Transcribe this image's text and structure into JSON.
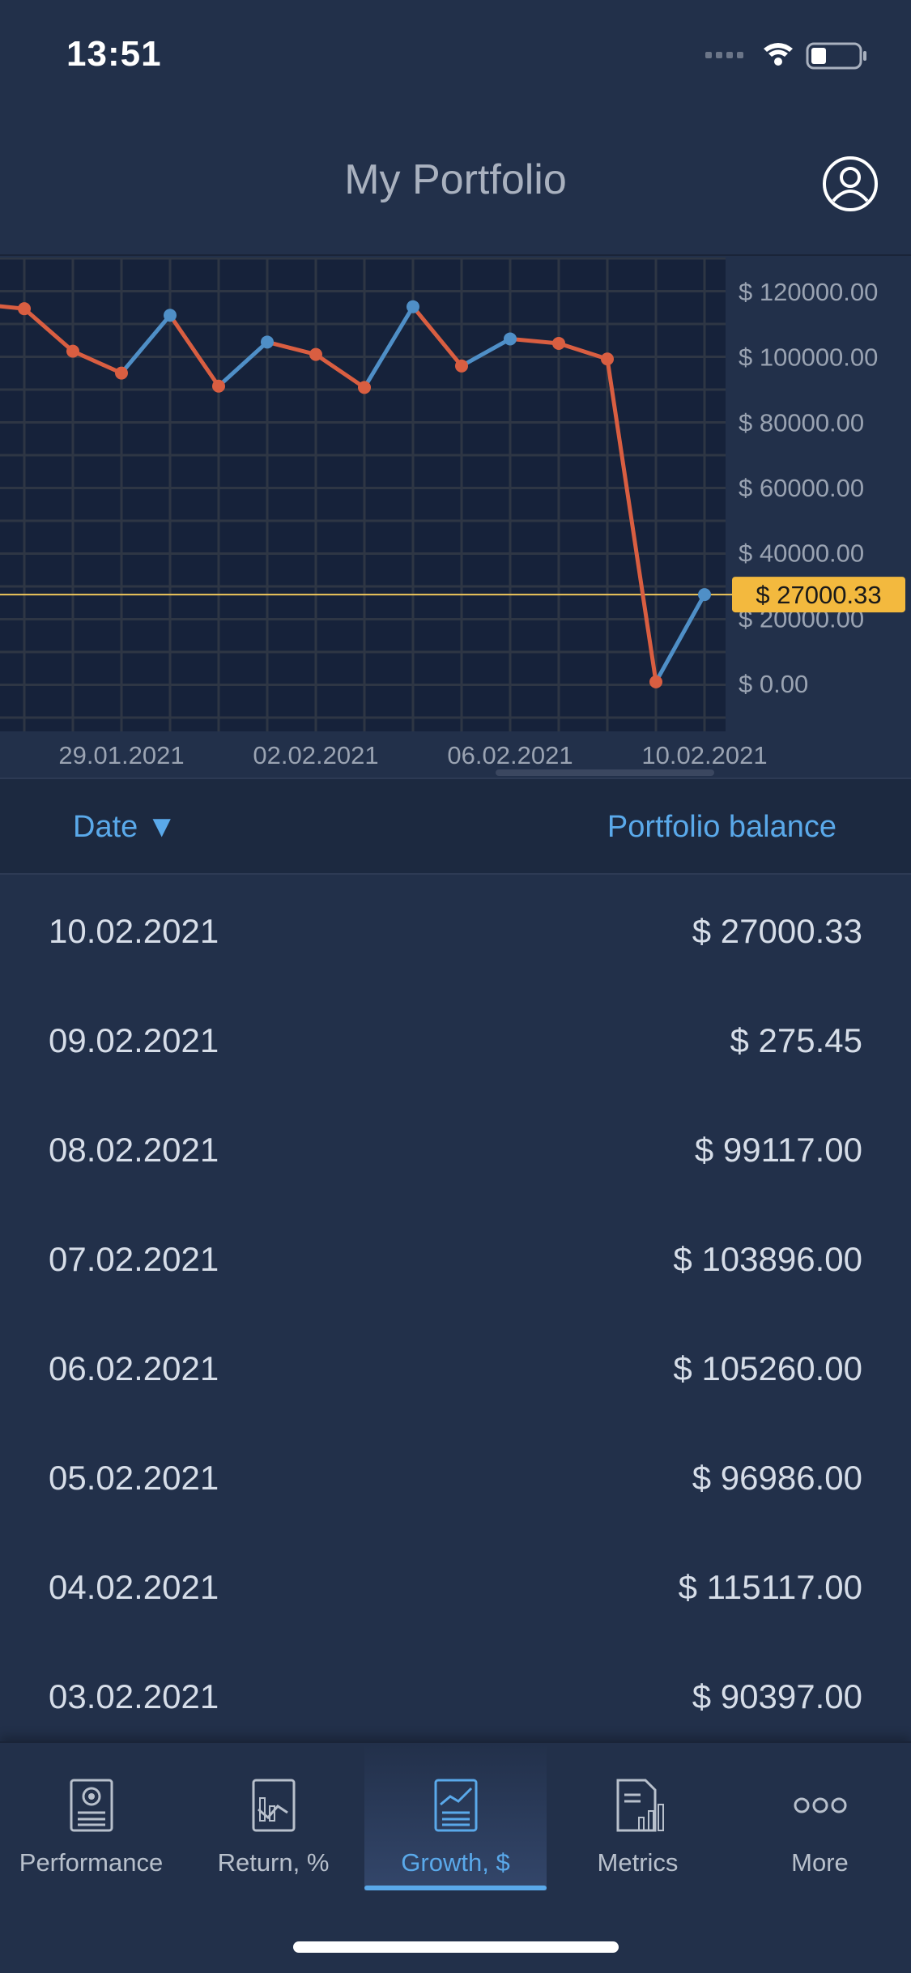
{
  "status": {
    "time": "13:51"
  },
  "header": {
    "title": "My Portfolio",
    "profile_icon": "user-circle-icon"
  },
  "chart_data": {
    "type": "line",
    "x": [
      "26.01.2021",
      "27.01.2021",
      "28.01.2021",
      "29.01.2021",
      "30.01.2021",
      "31.01.2021",
      "01.02.2021",
      "02.02.2021",
      "03.02.2021",
      "04.02.2021",
      "05.02.2021",
      "06.02.2021",
      "07.02.2021",
      "08.02.2021",
      "09.02.2021",
      "10.02.2021"
    ],
    "values": [
      116000,
      114500,
      101500,
      94800,
      112500,
      90800,
      104300,
      100500,
      90397,
      115117,
      96986,
      105260,
      103896,
      99117,
      275.45,
      27000.33
    ],
    "ylim": [
      0,
      120000
    ],
    "y_ticks": [
      "$ 0.00",
      "$ 20000.00",
      "$ 40000.00",
      "$ 60000.00",
      "$ 80000.00",
      "$ 100000.00",
      "$ 120000.00"
    ],
    "x_tick_labels": [
      "29.01.2021",
      "02.02.2021",
      "06.02.2021",
      "10.02.2021"
    ],
    "current_value_label": "$ 27000.33",
    "colors": {
      "up": "#4f8fc7",
      "down": "#d95e41",
      "marker_line": "#f0c75a",
      "label_bg": "#f3b93e",
      "grid": "#2e3644",
      "plot_bg": "#16223a"
    }
  },
  "table": {
    "col_date": "Date ▼",
    "col_balance": "Portfolio balance",
    "rows": [
      {
        "date": "10.02.2021",
        "value": "$ 27000.33"
      },
      {
        "date": "09.02.2021",
        "value": "$ 275.45"
      },
      {
        "date": "08.02.2021",
        "value": "$ 99117.00"
      },
      {
        "date": "07.02.2021",
        "value": "$ 103896.00"
      },
      {
        "date": "06.02.2021",
        "value": "$ 105260.00"
      },
      {
        "date": "05.02.2021",
        "value": "$ 96986.00"
      },
      {
        "date": "04.02.2021",
        "value": "$ 115117.00"
      },
      {
        "date": "03.02.2021",
        "value": "$ 90397.00"
      }
    ]
  },
  "tabs": [
    {
      "label": "Performance",
      "icon": "performance-icon"
    },
    {
      "label": "Return, %",
      "icon": "return-chart-icon"
    },
    {
      "label": "Growth, $",
      "icon": "growth-chart-icon",
      "active": true
    },
    {
      "label": "Metrics",
      "icon": "metrics-icon"
    },
    {
      "label": "More",
      "icon": "more-dots-icon"
    }
  ]
}
